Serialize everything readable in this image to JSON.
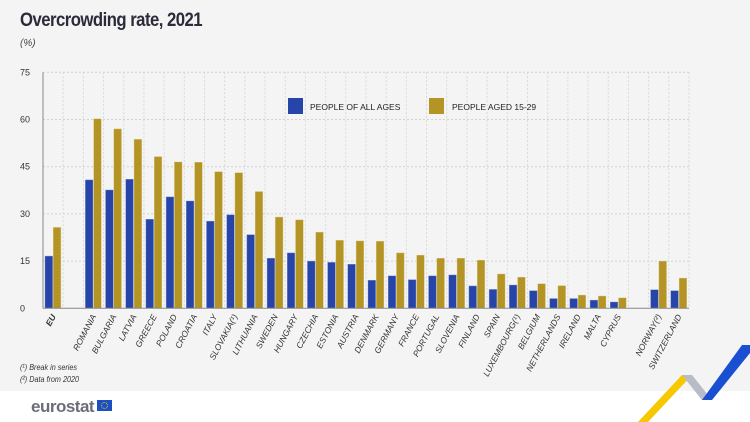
{
  "title": "Overcrowding rate, 2021",
  "unit": "(%)",
  "footnotes": [
    "(¹) Break in series",
    "(²) Data from 2020"
  ],
  "logo": "eurostat",
  "colors": {
    "all_ages": "#2745a8",
    "aged_15_29": "#b39424",
    "background": "#f4f4f4"
  },
  "chart_data": {
    "type": "bar",
    "title": "Overcrowding rate, 2021",
    "ylabel": "(%)",
    "ylim": [
      0,
      75
    ],
    "yticks": [
      0,
      15,
      30,
      45,
      60,
      75
    ],
    "grid": true,
    "legend_placement": "top-center",
    "categories": [
      "EU",
      "",
      "ROMANIA",
      "BULGARIA",
      "LATVIA",
      "GREECE",
      "POLAND",
      "CROATIA",
      "ITALY",
      "SLOVAKIA(¹)",
      "LITHUANIA",
      "SWEDEN",
      "HUNGARY",
      "CZECHIA",
      "ESTONIA",
      "AUSTRIA",
      "DENMARK",
      "GERMANY",
      "FRANCE",
      "PORTUGAL",
      "SLOVENIA",
      "FINLAND",
      "SPAIN",
      "LUXEMBOURG(¹)",
      "BELGIUM",
      "NETHERLANDS",
      "IRELAND",
      "MALTA",
      "CYPRUS",
      "",
      "NORWAY(²)",
      "SWITZERLAND"
    ],
    "series": [
      {
        "name": "PEOPLE OF ALL AGES",
        "color": "#2745a8",
        "values": [
          16.6,
          null,
          40.8,
          37.6,
          41.0,
          28.3,
          35.4,
          34.1,
          27.7,
          29.7,
          23.4,
          15.9,
          17.6,
          15.0,
          14.6,
          14.0,
          8.9,
          10.3,
          9.1,
          10.3,
          10.6,
          7.1,
          6.0,
          7.4,
          5.6,
          3.1,
          3.1,
          2.6,
          2.0,
          null,
          5.9,
          5.6
        ]
      },
      {
        "name": "PEOPLE AGED 15-29",
        "color": "#b39424",
        "values": [
          25.7,
          null,
          60.2,
          57.0,
          53.7,
          48.2,
          46.5,
          46.4,
          43.4,
          43.1,
          37.1,
          29.0,
          28.1,
          24.2,
          21.6,
          21.4,
          21.3,
          17.6,
          16.9,
          15.9,
          15.9,
          15.3,
          10.9,
          9.9,
          7.8,
          7.2,
          4.2,
          3.9,
          3.3,
          null,
          15.0,
          9.6
        ]
      }
    ]
  }
}
